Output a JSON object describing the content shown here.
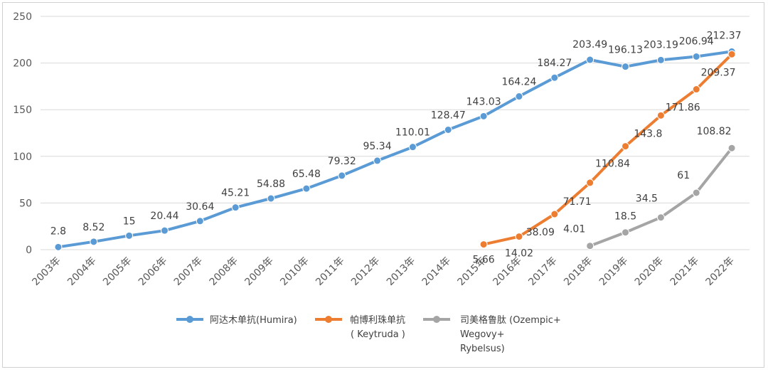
{
  "chart_data": {
    "type": "line",
    "title": "",
    "xlabel": "",
    "ylabel": "",
    "ylim": [
      0,
      250
    ],
    "yticks": [
      0,
      50,
      100,
      150,
      200,
      250
    ],
    "grid": "horizontal",
    "legend_position": "bottom",
    "categories": [
      "2003年",
      "2004年",
      "2005年",
      "2006年",
      "2007年",
      "2008年",
      "2009年",
      "2010年",
      "2011年",
      "2012年",
      "2013年",
      "2014年",
      "2015年",
      "2016年",
      "2017年",
      "2018年",
      "2019年",
      "2020年",
      "2021年",
      "2022年"
    ],
    "series": [
      {
        "name": "阿达木单抗(Humira)",
        "color": "#5b9bd5",
        "values": [
          2.8,
          8.52,
          15,
          20.44,
          30.64,
          45.21,
          54.88,
          65.48,
          79.32,
          95.34,
          110.01,
          128.47,
          143.03,
          164.24,
          184.27,
          203.49,
          196.13,
          203.19,
          206.94,
          212.37
        ]
      },
      {
        "name": "帕博利珠单抗",
        "name_line2": "( Keytruda )",
        "color": "#ed7d31",
        "values": [
          null,
          null,
          null,
          null,
          null,
          null,
          null,
          null,
          null,
          null,
          null,
          null,
          5.66,
          14.02,
          38.09,
          71.71,
          110.84,
          143.8,
          171.86,
          209.37
        ]
      },
      {
        "name": "司美格鲁肽  (Ozempic+",
        "name_line2": "Wegovy+",
        "name_line3": "Rybelsus)",
        "color": "#a5a5a5",
        "values": [
          null,
          null,
          null,
          null,
          null,
          null,
          null,
          null,
          null,
          null,
          null,
          null,
          null,
          null,
          null,
          4.01,
          18.5,
          34.5,
          61,
          108.82
        ]
      }
    ]
  }
}
